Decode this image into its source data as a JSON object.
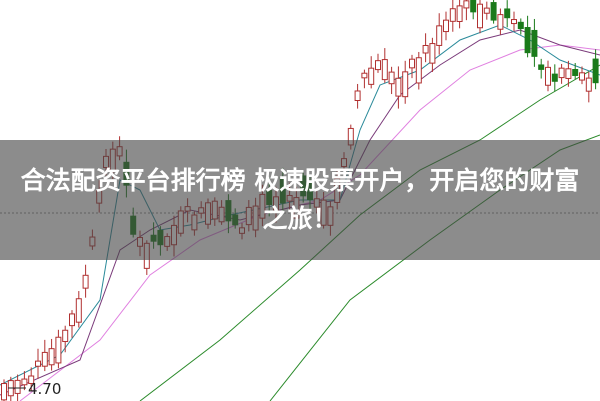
{
  "headline": {
    "line1": "合法配资平台排行榜 极速股票开户，开启您的财富",
    "line2": "之旅！"
  },
  "chart": {
    "low_price_label": "4.70",
    "colors": {
      "up": "#b03030",
      "down": "#1a7a1a",
      "ma_short": "#2a8a9a",
      "ma_mid": "#7a3a7a",
      "ma_long": "#e080e0",
      "ma_longer": "#2a8a2a",
      "banner": "#464646"
    }
  }
}
